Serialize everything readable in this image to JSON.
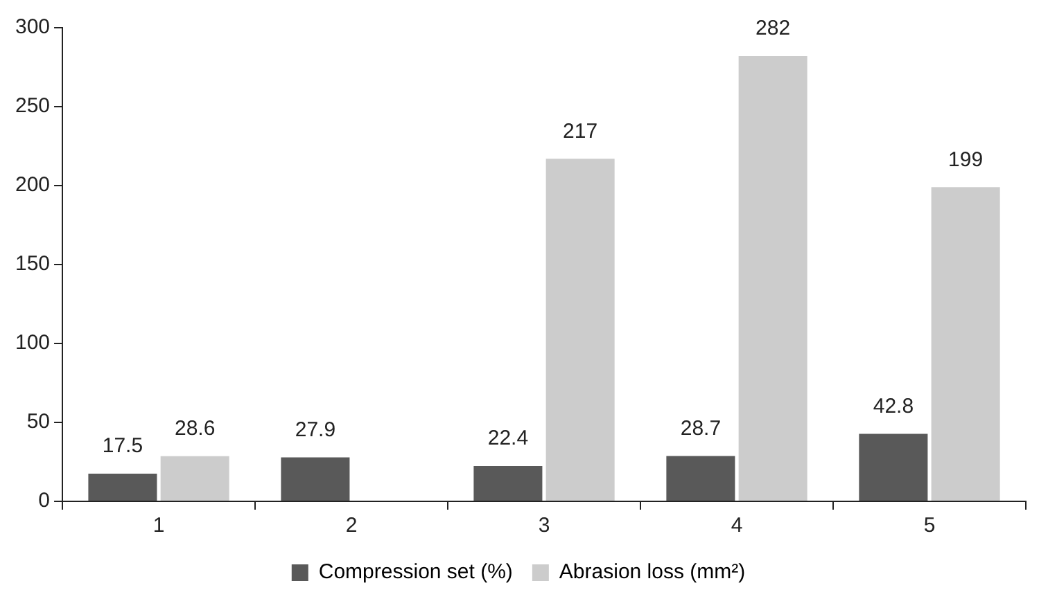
{
  "chart_data": {
    "type": "bar",
    "categories": [
      "1",
      "2",
      "3",
      "4",
      "5"
    ],
    "series": [
      {
        "name": "Compression set (%)",
        "color": "#595959",
        "values": [
          17.5,
          27.9,
          22.4,
          28.7,
          42.8
        ]
      },
      {
        "name": "Abrasion loss (mm²)",
        "color": "#cccccc",
        "values": [
          28.6,
          null,
          217,
          282,
          199
        ]
      }
    ],
    "ylim": [
      0,
      300
    ],
    "yticks": [
      0,
      50,
      100,
      150,
      200,
      250,
      300
    ],
    "grid": false,
    "legend": "bottom",
    "data_labels": true
  }
}
